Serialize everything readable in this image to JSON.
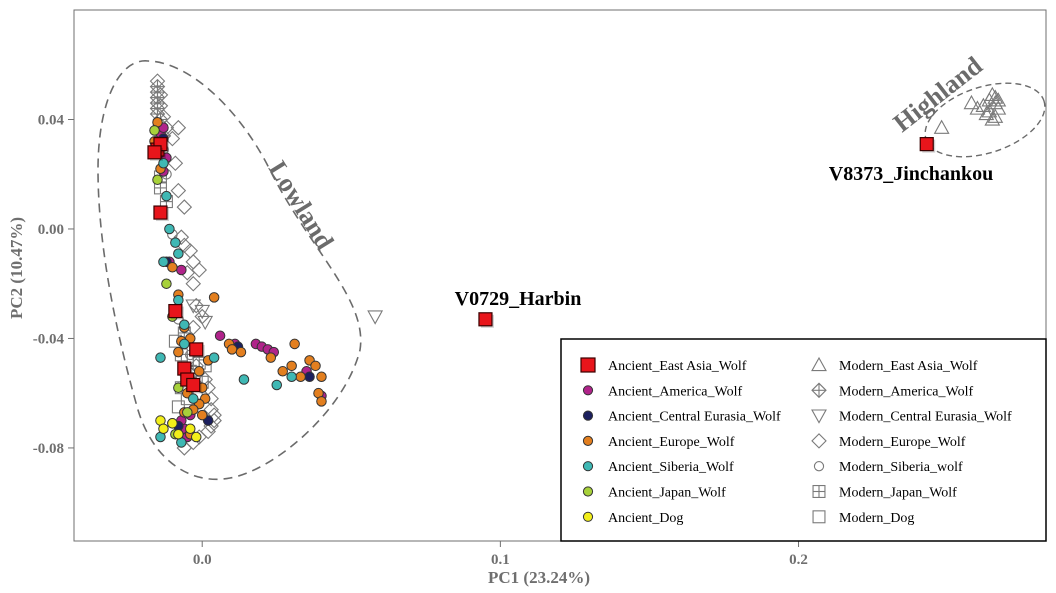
{
  "chart_data": {
    "type": "scatter",
    "xlabel": "PC1 (23.24%)",
    "ylabel": "PC2 (10.47%)",
    "xlim": [
      -0.043,
      0.283
    ],
    "ylim": [
      -0.114,
      0.08
    ],
    "x_ticks": [
      {
        "value": 0.0,
        "label": "0.0"
      },
      {
        "value": 0.1,
        "label": "0.1"
      },
      {
        "value": 0.2,
        "label": "0.2"
      }
    ],
    "y_ticks": [
      {
        "value": 0.04,
        "label": "0.04"
      },
      {
        "value": 0.0,
        "label": "0.00"
      },
      {
        "value": -0.04,
        "label": "-0.04"
      },
      {
        "value": -0.08,
        "label": "-0.08"
      }
    ],
    "grid": false,
    "legend_position": "bottom-right",
    "colors": {
      "east_asia": "#e8151b",
      "america": "#b0238a",
      "central_eurasia": "#1b1f5e",
      "europe": "#e37f1f",
      "siberia": "#3fb8b4",
      "japan": "#a7d13a",
      "dog": "#f2ee1a",
      "modern": "#7a7a7a",
      "outline": "#555555"
    },
    "regions": [
      {
        "label": "Lowland"
      },
      {
        "label": "Highland"
      }
    ],
    "annotations": [
      {
        "text": "V0729_Harbin",
        "x": 0.095,
        "y": -0.033
      },
      {
        "text": "V8373_Jinchankou",
        "x": 0.243,
        "y": 0.031
      }
    ],
    "series": [
      {
        "name": "Ancient_East Asia_Wolf",
        "marker": "square-filled",
        "color_key": "east_asia",
        "points": [
          [
            -0.015,
            0.029
          ],
          [
            -0.014,
            0.031
          ],
          [
            -0.016,
            0.028
          ],
          [
            -0.014,
            0.006
          ],
          [
            -0.009,
            -0.03
          ],
          [
            -0.002,
            -0.044
          ],
          [
            -0.006,
            -0.051
          ],
          [
            -0.005,
            -0.055
          ],
          [
            -0.003,
            -0.057
          ],
          [
            0.095,
            -0.033
          ],
          [
            0.243,
            0.031
          ]
        ]
      },
      {
        "name": "Ancient_America_Wolf",
        "marker": "circle-filled",
        "color_key": "america",
        "points": [
          [
            -0.014,
            0.035
          ],
          [
            -0.013,
            0.037
          ],
          [
            -0.012,
            0.026
          ],
          [
            -0.013,
            0.021
          ],
          [
            -0.011,
            -0.012
          ],
          [
            -0.007,
            -0.015
          ],
          [
            0.006,
            -0.039
          ],
          [
            0.011,
            -0.042
          ],
          [
            0.018,
            -0.042
          ],
          [
            0.02,
            -0.043
          ],
          [
            0.022,
            -0.044
          ],
          [
            0.024,
            -0.045
          ],
          [
            0.035,
            -0.052
          ],
          [
            0.04,
            -0.061
          ],
          [
            -0.006,
            -0.073
          ],
          [
            -0.005,
            -0.076
          ],
          [
            -0.007,
            -0.07
          ],
          [
            -0.004,
            -0.068
          ]
        ]
      },
      {
        "name": "Ancient_Central Eurasia_Wolf",
        "marker": "circle-filled",
        "color_key": "central_eurasia",
        "points": [
          [
            -0.013,
            0.033
          ],
          [
            -0.012,
            -0.012
          ],
          [
            0.012,
            -0.043
          ],
          [
            0.036,
            -0.054
          ],
          [
            -0.008,
            -0.072
          ],
          [
            0.002,
            -0.07
          ]
        ]
      },
      {
        "name": "Ancient_Europe_Wolf",
        "marker": "circle-filled",
        "color_key": "europe",
        "points": [
          [
            -0.015,
            0.039
          ],
          [
            -0.016,
            0.032
          ],
          [
            -0.014,
            0.022
          ],
          [
            -0.01,
            -0.014
          ],
          [
            -0.008,
            -0.024
          ],
          [
            -0.006,
            -0.036
          ],
          [
            -0.004,
            -0.04
          ],
          [
            0.004,
            -0.025
          ],
          [
            0.009,
            -0.042
          ],
          [
            0.01,
            -0.044
          ],
          [
            0.013,
            -0.045
          ],
          [
            0.031,
            -0.042
          ],
          [
            0.03,
            -0.05
          ],
          [
            0.033,
            -0.054
          ],
          [
            0.036,
            -0.048
          ],
          [
            0.038,
            -0.05
          ],
          [
            0.04,
            -0.054
          ],
          [
            0.039,
            -0.06
          ],
          [
            0.04,
            -0.063
          ],
          [
            0.027,
            -0.052
          ],
          [
            0.023,
            -0.047
          ],
          [
            0.002,
            -0.048
          ],
          [
            -0.001,
            -0.052
          ],
          [
            0.0,
            -0.058
          ],
          [
            0.001,
            -0.062
          ],
          [
            -0.001,
            -0.064
          ],
          [
            -0.003,
            -0.066
          ],
          [
            0.0,
            -0.068
          ],
          [
            -0.006,
            -0.067
          ],
          [
            -0.005,
            -0.06
          ],
          [
            -0.008,
            -0.045
          ],
          [
            -0.007,
            -0.041
          ],
          [
            -0.004,
            -0.075
          ]
        ]
      },
      {
        "name": "Ancient_Siberia_Wolf",
        "marker": "circle-filled",
        "color_key": "siberia",
        "points": [
          [
            -0.013,
            0.024
          ],
          [
            -0.012,
            0.012
          ],
          [
            -0.011,
            0.0
          ],
          [
            -0.009,
            -0.005
          ],
          [
            -0.008,
            -0.009
          ],
          [
            -0.013,
            -0.012
          ],
          [
            -0.008,
            -0.026
          ],
          [
            -0.006,
            -0.035
          ],
          [
            -0.006,
            -0.042
          ],
          [
            0.004,
            -0.047
          ],
          [
            0.014,
            -0.055
          ],
          [
            0.025,
            -0.057
          ],
          [
            0.03,
            -0.054
          ],
          [
            -0.014,
            -0.047
          ],
          [
            -0.014,
            -0.076
          ],
          [
            -0.01,
            -0.071
          ],
          [
            -0.007,
            -0.078
          ],
          [
            -0.003,
            -0.062
          ]
        ]
      },
      {
        "name": "Ancient_Japan_Wolf",
        "marker": "circle-filled",
        "color_key": "japan",
        "points": [
          [
            -0.016,
            0.036
          ],
          [
            -0.015,
            0.018
          ],
          [
            -0.012,
            -0.02
          ],
          [
            -0.01,
            -0.032
          ],
          [
            -0.008,
            -0.058
          ],
          [
            -0.005,
            -0.067
          ],
          [
            -0.009,
            -0.075
          ]
        ]
      },
      {
        "name": "Ancient_Dog",
        "marker": "circle-filled",
        "color_key": "dog",
        "points": [
          [
            -0.014,
            -0.07
          ],
          [
            -0.013,
            -0.073
          ],
          [
            -0.01,
            -0.071
          ],
          [
            -0.008,
            -0.075
          ],
          [
            -0.004,
            -0.073
          ],
          [
            -0.002,
            -0.076
          ]
        ]
      },
      {
        "name": "Modern_East Asia_Wolf",
        "marker": "triangle-up",
        "color_key": "modern",
        "points": [
          [
            0.248,
            0.037
          ],
          [
            0.258,
            0.046
          ],
          [
            0.26,
            0.044
          ],
          [
            0.262,
            0.045
          ],
          [
            0.264,
            0.047
          ],
          [
            0.265,
            0.049
          ],
          [
            0.266,
            0.046
          ],
          [
            0.267,
            0.044
          ],
          [
            0.263,
            0.042
          ],
          [
            0.265,
            0.04
          ],
          [
            0.266,
            0.041
          ],
          [
            0.264,
            0.043
          ],
          [
            0.266,
            0.048
          ],
          [
            0.267,
            0.047
          ]
        ]
      },
      {
        "name": "Modern_America_Wolf",
        "marker": "diamond-cross",
        "color_key": "modern",
        "points": [
          [
            -0.015,
            0.052
          ],
          [
            -0.015,
            0.05
          ],
          [
            -0.015,
            0.048
          ],
          [
            -0.015,
            0.046
          ],
          [
            -0.015,
            0.044
          ],
          [
            -0.015,
            0.042
          ],
          [
            -0.014,
            0.04
          ],
          [
            -0.014,
            0.038
          ],
          [
            -0.014,
            0.036
          ],
          [
            -0.013,
            0.034
          ],
          [
            -0.015,
            0.032
          ]
        ]
      },
      {
        "name": "Modern_Central Eurasia_Wolf",
        "marker": "triangle-down",
        "color_key": "modern",
        "points": [
          [
            0.058,
            -0.032
          ],
          [
            0.0,
            -0.03
          ],
          [
            -0.003,
            -0.028
          ],
          [
            0.001,
            -0.034
          ]
        ]
      },
      {
        "name": "Modern_Europe_Wolf",
        "marker": "diamond",
        "color_key": "modern",
        "points": [
          [
            -0.015,
            0.054
          ],
          [
            -0.014,
            0.049
          ],
          [
            -0.014,
            0.045
          ],
          [
            -0.013,
            0.041
          ],
          [
            -0.012,
            0.037
          ],
          [
            -0.01,
            0.033
          ],
          [
            -0.008,
            0.037
          ],
          [
            -0.009,
            0.024
          ],
          [
            -0.008,
            0.014
          ],
          [
            -0.006,
            0.008
          ],
          [
            -0.007,
            -0.003
          ],
          [
            -0.006,
            -0.006
          ],
          [
            -0.004,
            -0.008
          ],
          [
            -0.003,
            -0.012
          ],
          [
            -0.001,
            -0.015
          ],
          [
            -0.005,
            -0.016
          ],
          [
            -0.003,
            -0.02
          ],
          [
            -0.002,
            -0.028
          ],
          [
            0.0,
            -0.032
          ],
          [
            -0.003,
            -0.036
          ],
          [
            -0.002,
            -0.05
          ],
          [
            0.001,
            -0.055
          ],
          [
            0.002,
            -0.058
          ],
          [
            0.003,
            -0.062
          ],
          [
            0.003,
            -0.066
          ],
          [
            0.004,
            -0.068
          ],
          [
            0.004,
            -0.07
          ],
          [
            0.003,
            -0.072
          ],
          [
            0.002,
            -0.074
          ],
          [
            -0.001,
            -0.076
          ],
          [
            -0.003,
            -0.078
          ],
          [
            -0.006,
            -0.08
          ]
        ]
      },
      {
        "name": "Modern_Siberia_wolf",
        "marker": "circle-open",
        "color_key": "modern",
        "points": [
          [
            -0.013,
            0.029
          ],
          [
            -0.012,
            0.02
          ],
          [
            -0.01,
            -0.002
          ],
          [
            -0.008,
            -0.033
          ],
          [
            -0.004,
            -0.046
          ]
        ]
      },
      {
        "name": "Modern_Japan_Wolf",
        "marker": "square-cross",
        "color_key": "modern",
        "points": [
          [
            -0.014,
            0.015
          ],
          [
            -0.012,
            0.01
          ],
          [
            -0.006,
            -0.038
          ]
        ]
      },
      {
        "name": "Modern_Dog",
        "marker": "square-open",
        "color_key": "modern",
        "points": [
          [
            -0.014,
            0.019
          ],
          [
            -0.009,
            -0.041
          ],
          [
            -0.007,
            -0.046
          ],
          [
            -0.005,
            -0.048
          ],
          [
            -0.003,
            -0.048
          ],
          [
            -0.001,
            -0.049
          ],
          [
            0.001,
            -0.05
          ],
          [
            -0.004,
            -0.052
          ],
          [
            -0.002,
            -0.055
          ],
          [
            -0.007,
            -0.058
          ],
          [
            -0.005,
            -0.062
          ],
          [
            -0.002,
            -0.06
          ],
          [
            0.0,
            -0.056
          ],
          [
            -0.008,
            -0.065
          ]
        ]
      }
    ]
  }
}
